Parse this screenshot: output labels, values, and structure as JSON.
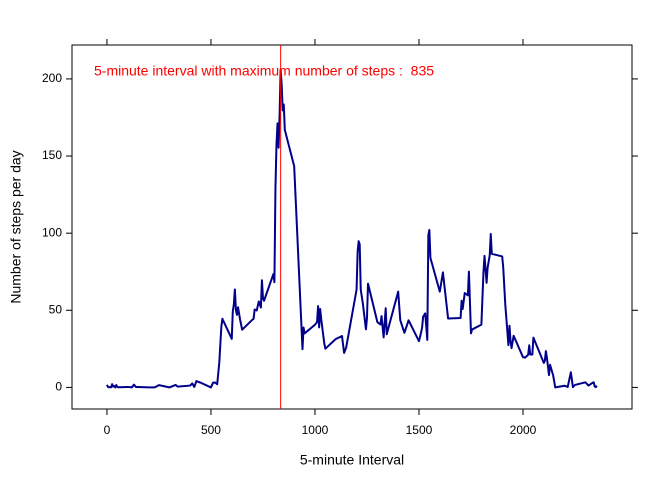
{
  "chart_data": {
    "type": "line",
    "xlabel": "5-minute Interval",
    "ylabel": "Number of steps per day",
    "annotation": "5-minute interval with maximum number of steps :  835",
    "annotation_color": "red",
    "vline": 835,
    "vline_color": "red",
    "color": "#00008B",
    "xlim": [
      -168,
      2524
    ],
    "ylim": [
      -14,
      222
    ],
    "xticks": [
      0,
      500,
      1000,
      1500,
      2000
    ],
    "yticks": [
      0,
      50,
      100,
      150,
      200
    ],
    "x": [
      0,
      5,
      10,
      15,
      20,
      25,
      30,
      35,
      40,
      45,
      50,
      55,
      100,
      110,
      120,
      130,
      140,
      150,
      200,
      230,
      250,
      300,
      330,
      340,
      400,
      410,
      420,
      430,
      440,
      450,
      500,
      510,
      520,
      530,
      540,
      550,
      555,
      600,
      605,
      610,
      615,
      620,
      625,
      630,
      640,
      650,
      700,
      705,
      710,
      720,
      730,
      740,
      745,
      750,
      755,
      800,
      805,
      810,
      815,
      820,
      825,
      830,
      835,
      840,
      845,
      850,
      855,
      900,
      940,
      945,
      950,
      1000,
      1010,
      1015,
      1020,
      1025,
      1030,
      1045,
      1050,
      1100,
      1130,
      1140,
      1150,
      1200,
      1205,
      1210,
      1215,
      1220,
      1230,
      1245,
      1250,
      1255,
      1300,
      1315,
      1320,
      1330,
      1340,
      1345,
      1400,
      1410,
      1430,
      1450,
      1500,
      1510,
      1515,
      1520,
      1530,
      1540,
      1545,
      1550,
      1555,
      1600,
      1615,
      1640,
      1700,
      1705,
      1710,
      1720,
      1735,
      1740,
      1750,
      1755,
      1800,
      1810,
      1815,
      1825,
      1830,
      1840,
      1845,
      1850,
      1900,
      1905,
      1915,
      1930,
      1935,
      1940,
      1945,
      1955,
      2000,
      2010,
      2025,
      2030,
      2035,
      2045,
      2050,
      2100,
      2105,
      2110,
      2115,
      2125,
      2130,
      2145,
      2155,
      2200,
      2215,
      2230,
      2240,
      2250,
      2300,
      2315,
      2330,
      2340,
      2345,
      2350,
      2355
    ],
    "values": [
      1.7,
      0.3,
      0.1,
      0.2,
      0.1,
      2.1,
      0.5,
      0.9,
      0,
      1.5,
      0.3,
      0.1,
      0.3,
      0.2,
      0,
      1.8,
      0.2,
      0.3,
      0,
      0,
      1.5,
      0,
      1.6,
      0.5,
      1.2,
      2.6,
      0.3,
      4.1,
      3.5,
      3.1,
      0,
      3,
      3.2,
      2.1,
      16,
      39.5,
      44.5,
      31.5,
      49.3,
      53.8,
      63.5,
      50,
      47,
      52,
      44,
      37.4,
      44,
      44.5,
      50.5,
      49.9,
      55.7,
      51.8,
      69.5,
      57.8,
      56.2,
      73.4,
      68.2,
      129.4,
      157.5,
      171.2,
      155.4,
      177.3,
      206.2,
      195.9,
      179.6,
      183.4,
      167,
      143.5,
      24.8,
      38.8,
      35,
      40.6,
      42.4,
      52.7,
      38.9,
      50.8,
      44.3,
      28.3,
      25.1,
      31.4,
      33.3,
      22.4,
      25.9,
      63.4,
      87.7,
      94.8,
      92.8,
      63.4,
      54.5,
      37.7,
      45.1,
      67.3,
      42.3,
      40.8,
      46.2,
      32.4,
      51.3,
      34.5,
      62.1,
      43.6,
      35.4,
      43.5,
      30,
      35.5,
      38.8,
      45.9,
      48,
      30.8,
      98.7,
      102.1,
      84,
      62.1,
      74.6,
      44.7,
      45,
      56.2,
      50.8,
      61.2,
      59.7,
      75.1,
      35,
      37.5,
      40.7,
      74.7,
      85.3,
      67.8,
      77.7,
      85.6,
      99.5,
      86.6,
      84.9,
      77.8,
      53.5,
      27.4,
      40,
      30.2,
      25.5,
      33.5,
      19.6,
      19.3,
      21.2,
      27.3,
      21.3,
      21.3,
      32.3,
      15.9,
      17.2,
      23.5,
      19.2,
      8,
      14.7,
      7.8,
      0,
      1.1,
      0.3,
      9.8,
      0.2,
      1.6,
      3.3,
      1.2,
      2.6,
      3.3,
      0.6,
      0.2,
      1.1
    ]
  }
}
